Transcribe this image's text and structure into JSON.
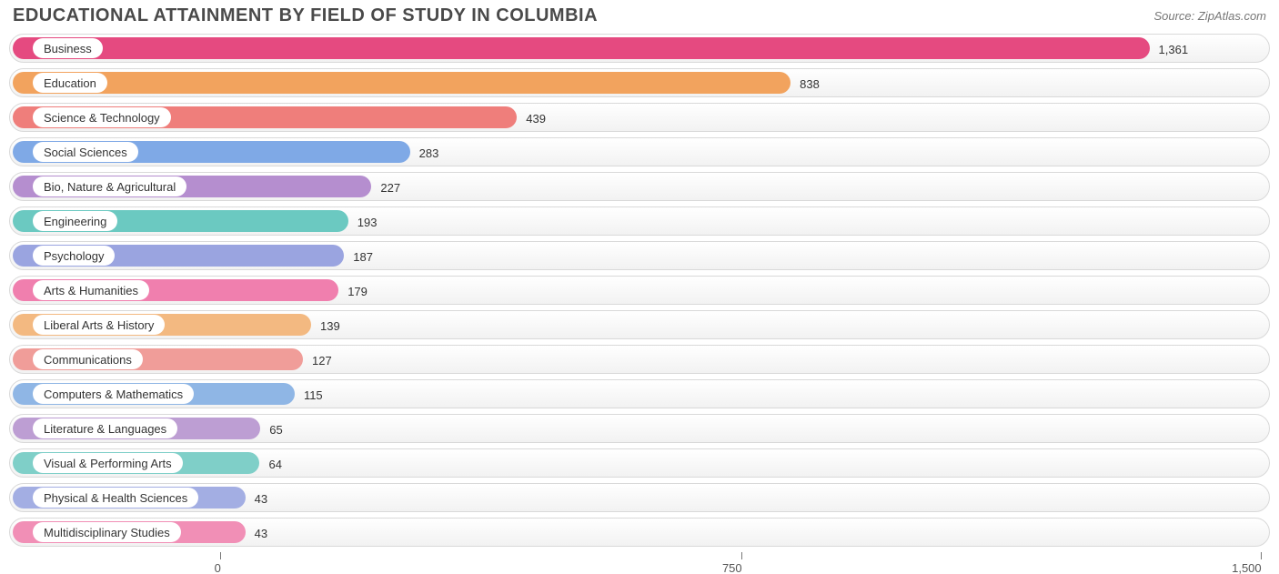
{
  "title": "EDUCATIONAL ATTAINMENT BY FIELD OF STUDY IN COLUMBIA",
  "source": "Source: ZipAtlas.com",
  "chart": {
    "type": "bar-horizontal",
    "background_color": "#ffffff",
    "row_border_color": "#d9d9d9",
    "row_bg_gradient_top": "#ffffff",
    "row_bg_gradient_bottom": "#f2f2f2",
    "pill_bg": "#ffffff",
    "label_fontsize": 13,
    "value_fontsize": 13,
    "title_fontsize": 20,
    "title_color": "#4a4a4a",
    "plot_inner_width": 1380,
    "plot_left_offset": 3,
    "x_domain_min": -300,
    "x_domain_max": 1530,
    "xticks": [
      {
        "value": 0,
        "label": "0"
      },
      {
        "value": 750,
        "label": "750"
      },
      {
        "value": 1500,
        "label": "1,500"
      }
    ],
    "bars": [
      {
        "label": "Business",
        "value": 1361,
        "display": "1,361",
        "color": "#e54a80"
      },
      {
        "label": "Education",
        "value": 838,
        "display": "838",
        "color": "#f2a35e"
      },
      {
        "label": "Science & Technology",
        "value": 439,
        "display": "439",
        "color": "#ef7e7b"
      },
      {
        "label": "Social Sciences",
        "value": 283,
        "display": "283",
        "color": "#7fa9e6"
      },
      {
        "label": "Bio, Nature & Agricultural",
        "value": 227,
        "display": "227",
        "color": "#b58ecf"
      },
      {
        "label": "Engineering",
        "value": 193,
        "display": "193",
        "color": "#6bc9c1"
      },
      {
        "label": "Psychology",
        "value": 187,
        "display": "187",
        "color": "#9aa4e0"
      },
      {
        "label": "Arts & Humanities",
        "value": 179,
        "display": "179",
        "color": "#f07fae"
      },
      {
        "label": "Liberal Arts & History",
        "value": 139,
        "display": "139",
        "color": "#f3b981"
      },
      {
        "label": "Communications",
        "value": 127,
        "display": "127",
        "color": "#f09d99"
      },
      {
        "label": "Computers & Mathematics",
        "value": 115,
        "display": "115",
        "color": "#8fb6e5"
      },
      {
        "label": "Literature & Languages",
        "value": 65,
        "display": "65",
        "color": "#bd9ed3"
      },
      {
        "label": "Visual & Performing Arts",
        "value": 64,
        "display": "64",
        "color": "#7fcfc8"
      },
      {
        "label": "Physical & Health Sciences",
        "value": 43,
        "display": "43",
        "color": "#a3aee3"
      },
      {
        "label": "Multidisciplinary Studies",
        "value": 43,
        "display": "43",
        "color": "#f18fb6"
      }
    ]
  }
}
